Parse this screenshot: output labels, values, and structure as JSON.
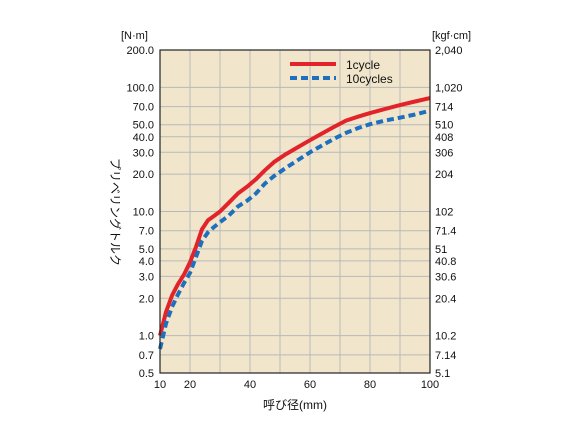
{
  "chart_data": {
    "type": "line",
    "title": "",
    "xlabel": "呼び径(mm)",
    "ylabel": "プリベリングトルク",
    "y_unit_left": "[N·m]",
    "y_unit_right": "[kgf·cm]",
    "xlim": [
      10,
      100
    ],
    "ylim": [
      0.5,
      200
    ],
    "y_scale": "log",
    "grid": true,
    "legend_position": "top-right",
    "background_color": "#f1e6cc",
    "grid_color": "#b9b9b9",
    "x_ticks": [
      10,
      20,
      40,
      60,
      80,
      100
    ],
    "y_ticks_left": [
      {
        "value": 200,
        "label": "200.0"
      },
      {
        "value": 100,
        "label": "100.0"
      },
      {
        "value": 70,
        "label": "70.0"
      },
      {
        "value": 50,
        "label": "50.0"
      },
      {
        "value": 40,
        "label": "40.0"
      },
      {
        "value": 30,
        "label": "30.0"
      },
      {
        "value": 20,
        "label": "20.0"
      },
      {
        "value": 10,
        "label": "10.0"
      },
      {
        "value": 7,
        "label": "7.0"
      },
      {
        "value": 5,
        "label": "5.0"
      },
      {
        "value": 4,
        "label": "4.0"
      },
      {
        "value": 3,
        "label": "3.0"
      },
      {
        "value": 2,
        "label": "2.0"
      },
      {
        "value": 1,
        "label": "1.0"
      },
      {
        "value": 0.7,
        "label": "0.7"
      },
      {
        "value": 0.5,
        "label": "0.5"
      }
    ],
    "y_ticks_right": [
      {
        "value": 200,
        "label": "2,040"
      },
      {
        "value": 100,
        "label": "1,020"
      },
      {
        "value": 70,
        "label": "714"
      },
      {
        "value": 50,
        "label": "510"
      },
      {
        "value": 40,
        "label": "408"
      },
      {
        "value": 30,
        "label": "306"
      },
      {
        "value": 20,
        "label": "204"
      },
      {
        "value": 10,
        "label": "102"
      },
      {
        "value": 7,
        "label": "71.4"
      },
      {
        "value": 5,
        "label": "51"
      },
      {
        "value": 4,
        "label": "40.8"
      },
      {
        "value": 3,
        "label": "30.6"
      },
      {
        "value": 2,
        "label": "20.4"
      },
      {
        "value": 1,
        "label": "10.2"
      },
      {
        "value": 0.7,
        "label": "7.14"
      },
      {
        "value": 0.5,
        "label": "5.1"
      }
    ],
    "series": [
      {
        "name": "1cycle",
        "color": "#e2232a",
        "style": "solid",
        "x": [
          10,
          12,
          14,
          16,
          18,
          20,
          22,
          24,
          26,
          28,
          30,
          33,
          36,
          39,
          42,
          45,
          48,
          52,
          56,
          60,
          64,
          68,
          72,
          76,
          80,
          85,
          90,
          95,
          100
        ],
        "y": [
          1.0,
          1.55,
          2.1,
          2.6,
          3.1,
          3.9,
          5.2,
          7.2,
          8.5,
          9.2,
          10.0,
          11.8,
          14.0,
          15.8,
          18.2,
          21.5,
          25.0,
          29.0,
          33.0,
          37.5,
          42.5,
          48.0,
          54.0,
          58.0,
          62.0,
          67.0,
          72.0,
          77.0,
          82.0
        ]
      },
      {
        "name": "10cycles",
        "color": "#1f6fbf",
        "style": "dashed",
        "x": [
          10,
          12,
          14,
          16,
          18,
          20,
          22,
          24,
          26,
          28,
          30,
          33,
          36,
          39,
          42,
          45,
          48,
          52,
          56,
          60,
          64,
          68,
          72,
          76,
          80,
          85,
          90,
          95,
          100
        ],
        "y": [
          0.78,
          1.25,
          1.7,
          2.15,
          2.65,
          3.2,
          4.3,
          5.8,
          6.8,
          7.5,
          8.2,
          9.3,
          11.0,
          12.2,
          14.0,
          16.8,
          19.3,
          22.5,
          26.0,
          30.0,
          34.0,
          38.5,
          43.0,
          47.0,
          50.5,
          54.0,
          57.0,
          60.5,
          65.0
        ]
      }
    ]
  }
}
